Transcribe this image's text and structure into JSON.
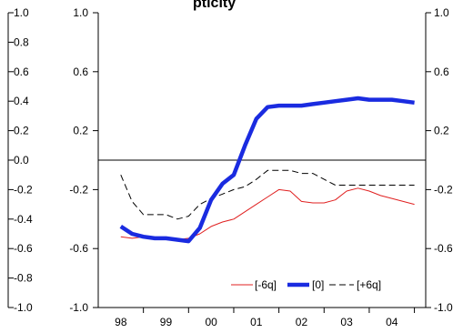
{
  "chart_data": {
    "type": "line",
    "title": "pticity",
    "left_axis": {
      "ylim": [
        -1.0,
        1.0
      ],
      "ticks": [
        -1.0,
        -0.6,
        -0.2,
        0.2,
        0.6,
        1.0
      ],
      "tick_labels": [
        "-1.0",
        "-0.6",
        "-0.2",
        "0.2",
        "0.6",
        "1.0"
      ]
    },
    "right_axis": {
      "ylim": [
        -1.0,
        1.0
      ],
      "ticks": [
        -1.0,
        -0.6,
        -0.2,
        0.2,
        0.6,
        1.0
      ],
      "tick_labels": [
        "-1.0",
        "-0.6",
        "-0.2",
        "0.2",
        "0.6",
        "1.0"
      ]
    },
    "outer_axis": {
      "ylim": [
        -1.0,
        1.0
      ],
      "ticks": [
        -1.0,
        -0.8,
        -0.6,
        -0.4,
        -0.2,
        0.0,
        0.2,
        0.4,
        0.6,
        0.8,
        1.0
      ],
      "tick_labels": [
        "-1.0",
        "-0.8",
        "-0.6",
        "-0.4",
        "-0.2",
        "0.0",
        "0.2",
        "0.4",
        "0.6",
        "0.8",
        "1.0"
      ]
    },
    "x_ticks": [
      1998,
      1999,
      2000,
      2001,
      2002,
      2003,
      2004
    ],
    "x_tick_labels": [
      "98",
      "99",
      "00",
      "01",
      "02",
      "03",
      "04"
    ],
    "xlim": [
      1997.5,
      2004.75
    ],
    "zero_line": 0,
    "legend_placement": "bottom-right",
    "series": [
      {
        "name": "[-6q]",
        "color": "#e02020",
        "style": "solid-thin",
        "x": [
          1998.0,
          1998.25,
          1998.5,
          1998.75,
          1999.0,
          1999.25,
          1999.5,
          1999.75,
          2000.0,
          2000.25,
          2000.5,
          2000.75,
          2001.0,
          2001.25,
          2001.5,
          2001.75,
          2002.0,
          2002.25,
          2002.5,
          2002.75,
          2003.0,
          2003.25,
          2003.5,
          2003.75,
          2004.0,
          2004.25,
          2004.5
        ],
        "y": [
          -0.52,
          -0.53,
          -0.52,
          -0.53,
          -0.53,
          -0.54,
          -0.53,
          -0.5,
          -0.45,
          -0.42,
          -0.4,
          -0.35,
          -0.3,
          -0.25,
          -0.2,
          -0.21,
          -0.28,
          -0.29,
          -0.29,
          -0.27,
          -0.21,
          -0.19,
          -0.21,
          -0.24,
          -0.26,
          -0.28,
          -0.3
        ]
      },
      {
        "name": "[0]",
        "color": "#1a2be0",
        "style": "solid-thick",
        "x": [
          1998.0,
          1998.25,
          1998.5,
          1998.75,
          1999.0,
          1999.25,
          1999.5,
          1999.75,
          2000.0,
          2000.25,
          2000.5,
          2000.75,
          2001.0,
          2001.25,
          2001.5,
          2001.75,
          2002.0,
          2002.25,
          2002.5,
          2002.75,
          2003.0,
          2003.25,
          2003.5,
          2003.75,
          2004.0,
          2004.25,
          2004.5
        ],
        "y": [
          -0.45,
          -0.5,
          -0.52,
          -0.53,
          -0.53,
          -0.54,
          -0.55,
          -0.46,
          -0.27,
          -0.16,
          -0.1,
          0.1,
          0.28,
          0.36,
          0.37,
          0.37,
          0.37,
          0.38,
          0.39,
          0.4,
          0.41,
          0.42,
          0.41,
          0.41,
          0.41,
          0.4,
          0.39
        ]
      },
      {
        "name": "[+6q]",
        "color": "#000000",
        "style": "dashed",
        "x": [
          1998.0,
          1998.25,
          1998.5,
          1998.75,
          1999.0,
          1999.25,
          1999.5,
          1999.75,
          2000.0,
          2000.25,
          2000.5,
          2000.75,
          2001.0,
          2001.25,
          2001.5,
          2001.75,
          2002.0,
          2002.25,
          2002.5,
          2002.75,
          2003.0,
          2003.25,
          2003.5,
          2003.75,
          2004.0,
          2004.25,
          2004.5
        ],
        "y": [
          -0.1,
          -0.28,
          -0.37,
          -0.37,
          -0.37,
          -0.4,
          -0.38,
          -0.3,
          -0.26,
          -0.23,
          -0.2,
          -0.18,
          -0.13,
          -0.07,
          -0.07,
          -0.07,
          -0.09,
          -0.09,
          -0.13,
          -0.17,
          -0.17,
          -0.17,
          -0.17,
          -0.17,
          -0.17,
          -0.17,
          -0.17
        ]
      }
    ]
  }
}
